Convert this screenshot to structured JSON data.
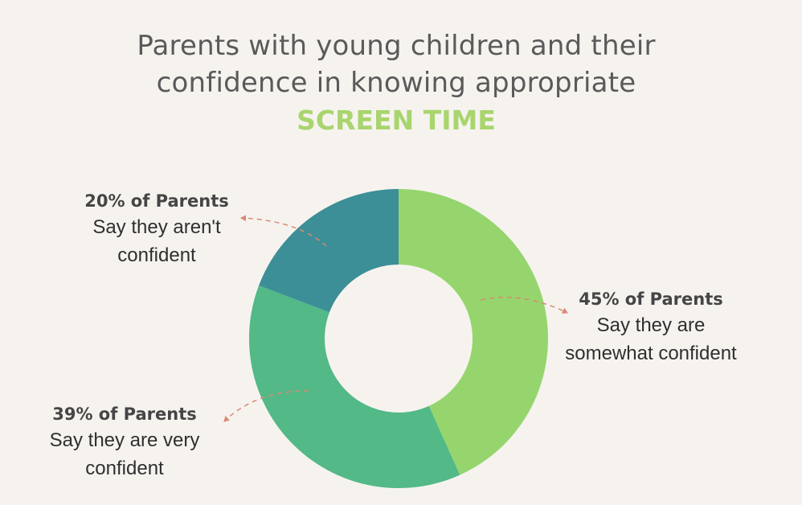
{
  "title": {
    "line1": "Parents with young children and their",
    "line2": "confidence in knowing appropriate",
    "accent": "SCREEN TIME"
  },
  "colors": {
    "background": "#f6f3ef",
    "accent": "#a8d56d",
    "arrow": "#d98a73"
  },
  "chart_data": {
    "type": "pie",
    "donut": true,
    "slices": [
      {
        "label": "45% of Parents",
        "description": "Say they are somewhat confident",
        "value": 45,
        "color": "#96d56e"
      },
      {
        "label": "39% of Parents",
        "description": "Say they are very confident",
        "value": 39,
        "color": "#52b987"
      },
      {
        "label": "20% of Parents",
        "description": "Say they aren't confident",
        "value": 20,
        "color": "#3c8f96"
      }
    ]
  },
  "callouts": [
    {
      "pct": "45% of Parents",
      "desc_line1": "Say they are",
      "desc_line2": "somewhat confident"
    },
    {
      "pct": "39% of Parents",
      "desc_line1": "Say they are very",
      "desc_line2": "confident"
    },
    {
      "pct": "20% of Parents",
      "desc_line1": "Say they aren't",
      "desc_line2": "confident"
    }
  ]
}
